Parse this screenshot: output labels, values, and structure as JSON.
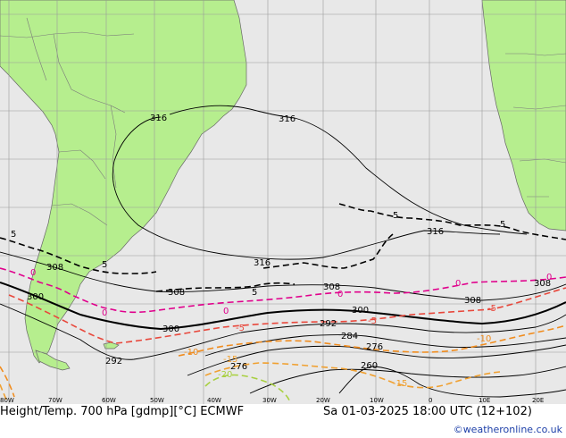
{
  "colors": {
    "sea": "#e8e8e8",
    "land": "#b6ee8e",
    "grid": "#9a9a9a",
    "border": "#7a7a7a",
    "height_contour": "#000000",
    "temp_0": "#e0008c",
    "temp_-5": "#e8483c",
    "temp_-10": "#f08c1e",
    "temp_-15": "#f0a030",
    "temp_-20": "#a8d040",
    "credit": "#1d3fa8"
  },
  "footer": {
    "title": "Height/Temp. 700 hPa [gdmp][°C] ECMWF",
    "valid_time": "Sa 01-03-2025 18:00 UTC (12+102)",
    "credit": "©weatheronline.co.uk"
  },
  "longitude_labels": [
    "80W",
    "70W",
    "60W",
    "50W",
    "40W",
    "30W",
    "20W",
    "10W",
    "0",
    "10E",
    "20E"
  ],
  "height_labels": [
    "316",
    "316",
    "316",
    "316",
    "308",
    "308",
    "308",
    "308",
    "308",
    "300",
    "300",
    "300",
    "292",
    "292",
    "284",
    "276",
    "276",
    "260"
  ],
  "temp_labels_0": [
    "0",
    "0",
    "0",
    "0",
    "0",
    "0"
  ],
  "temp_labels_5": [
    "5",
    "5",
    "5",
    "5",
    "5",
    "-5",
    "-5",
    "-5"
  ],
  "temp_labels_10": [
    "-10",
    "-10"
  ],
  "temp_labels_15": [
    "-15",
    "-15"
  ],
  "temp_labels_20": [
    "-20"
  ]
}
